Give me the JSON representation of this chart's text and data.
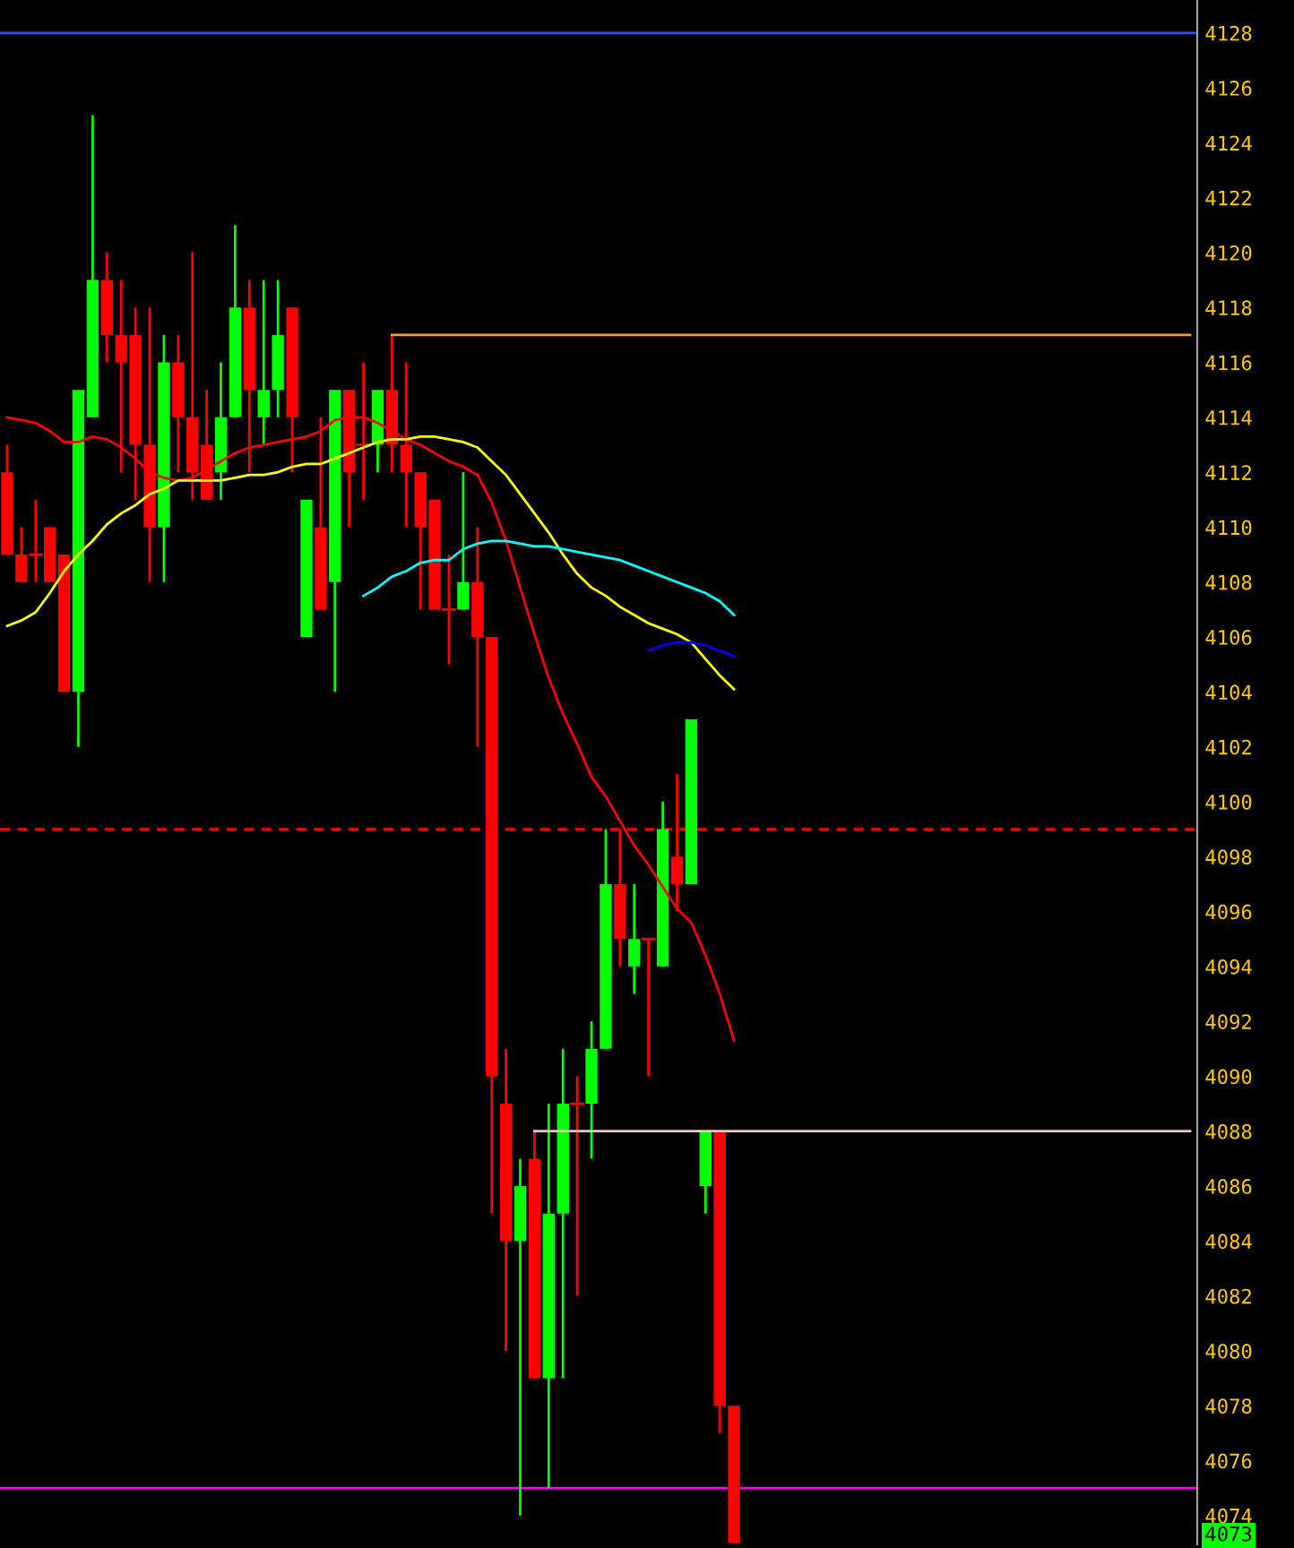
{
  "chart_data": {
    "type": "candlestick",
    "categories": [
      null,
      null,
      null,
      null,
      null,
      null,
      null,
      null,
      null,
      null,
      null,
      null,
      null,
      null,
      null,
      null,
      null,
      null,
      null,
      null,
      null,
      null,
      null,
      null,
      null,
      null,
      null,
      null,
      null,
      null,
      null,
      null,
      null,
      null,
      null,
      null,
      null,
      null,
      null,
      null,
      null,
      null,
      null,
      null,
      null,
      null,
      null,
      null,
      null,
      null,
      null,
      null,
      null,
      null,
      null,
      null,
      null,
      null,
      null,
      null,
      null,
      null,
      null,
      null,
      null,
      null,
      null,
      null,
      null,
      null,
      null,
      null,
      null,
      null,
      null,
      null,
      null,
      null,
      null,
      null,
      null,
      null,
      null,
      null
    ],
    "ylim": [
      4072.95,
      4129.2
    ],
    "yticks": [
      4074,
      4076,
      4078,
      4080,
      4082,
      4084,
      4086,
      4088,
      4090,
      4092,
      4094,
      4096,
      4098,
      4100,
      4102,
      4104,
      4106,
      4108,
      4110,
      4112,
      4114,
      4116,
      4118,
      4120,
      4122,
      4124,
      4126,
      4128
    ],
    "tick_labels": "y",
    "ohlc": [
      [
        4112,
        4113,
        4109,
        4109
      ],
      [
        4109,
        4110,
        4108,
        4108
      ],
      [
        4109,
        4111,
        4108,
        4109
      ],
      [
        4110,
        4110,
        4108,
        4108
      ],
      [
        4109,
        4109,
        4104,
        4104
      ],
      [
        4104,
        4115,
        4102,
        4115
      ],
      [
        4114,
        4125,
        4114,
        4119
      ],
      [
        4119,
        4120,
        4116,
        4117
      ],
      [
        4117,
        4119,
        4112,
        4116
      ],
      [
        4117,
        4118,
        4111,
        4113
      ],
      [
        4113,
        4118,
        4108,
        4110
      ],
      [
        4110,
        4117,
        4108,
        4116
      ],
      [
        4116,
        4117,
        4112,
        4114
      ],
      [
        4114,
        4120,
        4111,
        4112
      ],
      [
        4113,
        4115,
        4111,
        4111
      ],
      [
        4112,
        4116,
        4111,
        4114
      ],
      [
        4114,
        4121,
        4114,
        4118
      ],
      [
        4118,
        4119,
        4112,
        4115
      ],
      [
        4114,
        4119,
        4113,
        4115
      ],
      [
        4115,
        4119,
        4114,
        4117
      ],
      [
        4118,
        4118,
        4112,
        4114
      ],
      [
        4106,
        4111,
        4106,
        4111
      ],
      [
        4110,
        4114,
        4107,
        4107
      ],
      [
        4108,
        4115,
        4104,
        4115
      ],
      [
        4115,
        4115,
        4110,
        4112
      ],
      [
        4113,
        4116,
        4111,
        4113
      ],
      [
        4113,
        4115,
        4112,
        4115
      ],
      [
        4115,
        4117,
        4112,
        4113
      ],
      [
        4113,
        4116,
        4110,
        4112
      ],
      [
        4112,
        4112,
        4107,
        4110
      ],
      [
        4111,
        4111,
        4107,
        4107
      ],
      [
        4107,
        4109,
        4105,
        4107
      ],
      [
        4107,
        4112,
        4107,
        4108
      ],
      [
        4108,
        4110,
        4102,
        4106
      ],
      [
        4106,
        4106,
        4085,
        4090
      ],
      [
        4089,
        4091,
        4080,
        4084
      ],
      [
        4084,
        4087,
        4074,
        4086
      ],
      [
        4087,
        4088,
        4079,
        4079
      ],
      [
        4079,
        4089,
        4075,
        4085
      ],
      [
        4085,
        4091,
        4079,
        4089
      ],
      [
        4089,
        4090,
        4082,
        4089
      ],
      [
        4089,
        4092,
        4087,
        4091
      ],
      [
        4091,
        4099,
        4091,
        4097
      ],
      [
        4097,
        4099,
        4094,
        4095
      ],
      [
        4094,
        4097,
        4093,
        4095
      ],
      [
        4095,
        4095,
        4090,
        4095
      ],
      [
        4094,
        4100,
        4094,
        4099
      ],
      [
        4098,
        4101,
        4096,
        4097
      ],
      [
        4097,
        4103,
        4097,
        4103
      ],
      [
        4086,
        4088,
        4085,
        4088
      ],
      [
        4088,
        4088,
        4077,
        4078
      ],
      [
        4078,
        4078,
        4073,
        4073
      ],
      null,
      null,
      null,
      null,
      null,
      null,
      null,
      null,
      null,
      null,
      null,
      null,
      null,
      null,
      null,
      null,
      null,
      null,
      null,
      null,
      null,
      null,
      null,
      null,
      null,
      null,
      null,
      null,
      null,
      null,
      null,
      null
    ],
    "colors": [
      "#ff0000",
      "#ff0000",
      "#ff0000",
      "#ff0000",
      "#ff0000",
      "#00ff00",
      "#00ff00",
      "#ff0000",
      "#ff0000",
      "#ff0000",
      "#ff0000",
      "#00ff00",
      "#ff0000",
      "#ff0000",
      "#ff0000",
      "#00ff00",
      "#00ff00",
      "#ff0000",
      "#00ff00",
      "#00ff00",
      "#ff0000",
      "#00ff00",
      "#ff0000",
      "#00ff00",
      "#ff0000",
      "#ff0000",
      "#00ff00",
      "#ff0000",
      "#ff0000",
      "#ff0000",
      "#ff0000",
      "#ff0000",
      "#00ff00",
      "#ff0000",
      "#ff0000",
      "#ff0000",
      "#00ff00",
      "#ff0000",
      "#00ff00",
      "#00ff00",
      "#ff0000",
      "#00ff00",
      "#00ff00",
      "#ff0000",
      "#00ff00",
      "#ff0000",
      "#00ff00",
      "#ff0000",
      "#00ff00",
      "#00ff00",
      "#ff0000",
      "#ff0000",
      null,
      null,
      null,
      null,
      null,
      null,
      null,
      null,
      null,
      null,
      null,
      null,
      null,
      null,
      null,
      null,
      null,
      null,
      null,
      null,
      null,
      null,
      null,
      null,
      null,
      null,
      null,
      null,
      null,
      null,
      null,
      null
    ],
    "series": [
      {
        "type": "line",
        "color": "#ff0000",
        "values": [
          4114.0,
          4113.9,
          4113.8,
          4113.5,
          4113.1,
          4113.1,
          4113.3,
          4113.2,
          4112.9,
          4112.5,
          4112.0,
          4111.8,
          4111.7,
          4111.8,
          4112.1,
          4112.4,
          4112.7,
          4112.9,
          4113.0,
          4113.1,
          4113.2,
          4113.3,
          4113.5,
          4113.9,
          4114.0,
          4114.0,
          4113.8,
          4113.5,
          4113.2,
          4113.0,
          4112.7,
          4112.4,
          4112.2,
          4111.9,
          4110.9,
          4109.5,
          4107.8,
          4106.1,
          4104.5,
          4103.2,
          4102.1,
          4100.9,
          4100.2,
          4099.3,
          4098.4,
          4097.7,
          4096.9,
          4096.1,
          4095.6,
          4094.4,
          4093.0,
          4091.3,
          null,
          null,
          null,
          null,
          null,
          null,
          null,
          null,
          null,
          null,
          null,
          null,
          null,
          null,
          null,
          null,
          null,
          null,
          null,
          null,
          null,
          null,
          null,
          null,
          null,
          null,
          null,
          null,
          null,
          null,
          null,
          null
        ]
      },
      {
        "type": "line",
        "color": "#ffff00",
        "values": [
          4106.4,
          4106.6,
          4106.9,
          4107.6,
          4108.4,
          4109.0,
          4109.5,
          4110.1,
          4110.5,
          4110.8,
          4111.2,
          4111.4,
          4111.7,
          4111.7,
          4111.7,
          4111.7,
          4111.8,
          4111.9,
          4111.9,
          4112.0,
          4112.2,
          4112.3,
          4112.3,
          4112.5,
          4112.7,
          4112.9,
          4113.1,
          4113.2,
          4113.2,
          4113.3,
          4113.3,
          4113.2,
          4113.1,
          4112.9,
          4112.4,
          4111.9,
          4111.2,
          4110.5,
          4109.8,
          4109.0,
          4108.3,
          4107.8,
          4107.5,
          4107.1,
          4106.8,
          4106.5,
          4106.3,
          4106.1,
          4105.8,
          4105.2,
          4104.6,
          4104.1,
          null,
          null,
          null,
          null,
          null,
          null,
          null,
          null,
          null,
          null,
          null,
          null,
          null,
          null,
          null,
          null,
          null,
          null,
          null,
          null,
          null,
          null,
          null,
          null,
          null,
          null,
          null,
          null,
          null,
          null,
          null,
          null
        ]
      },
      {
        "type": "line",
        "color": "#00ffff",
        "values": [
          null,
          null,
          null,
          null,
          null,
          null,
          null,
          null,
          null,
          null,
          null,
          null,
          null,
          null,
          null,
          null,
          null,
          null,
          null,
          null,
          null,
          null,
          null,
          null,
          null,
          4107.5,
          4107.8,
          4108.2,
          4108.4,
          4108.7,
          4108.8,
          4108.8,
          4109.2,
          4109.4,
          4109.5,
          4109.5,
          4109.4,
          4109.3,
          4109.3,
          4109.2,
          4109.1,
          4109.0,
          4108.9,
          4108.8,
          4108.6,
          4108.4,
          4108.2,
          4108.0,
          4107.8,
          4107.6,
          4107.3,
          4106.8,
          null,
          null,
          null,
          null,
          null,
          null,
          null,
          null,
          null,
          null,
          null,
          null,
          null,
          null,
          null,
          null,
          null,
          null,
          null,
          null,
          null,
          null,
          null,
          null,
          null,
          null,
          null,
          null,
          null,
          null,
          null,
          null
        ]
      },
      {
        "type": "line",
        "color": "#0000ff",
        "values": [
          null,
          null,
          null,
          null,
          null,
          null,
          null,
          null,
          null,
          null,
          null,
          null,
          null,
          null,
          null,
          null,
          null,
          null,
          null,
          null,
          null,
          null,
          null,
          null,
          null,
          null,
          null,
          null,
          null,
          null,
          null,
          null,
          null,
          null,
          null,
          null,
          null,
          null,
          null,
          null,
          null,
          null,
          null,
          null,
          null,
          4105.5,
          4105.7,
          4105.8,
          4105.8,
          4105.7,
          4105.5,
          4105.3,
          null,
          null,
          null,
          null,
          null,
          null,
          null,
          null,
          null,
          null,
          null,
          null,
          null,
          null,
          null,
          null,
          null,
          null,
          null,
          null,
          null,
          null,
          null,
          null,
          null,
          null,
          null,
          null,
          null,
          null,
          null,
          null
        ]
      },
      {
        "type": "line",
        "color": "#f0a030",
        "values": [
          null,
          null,
          null,
          null,
          null,
          null,
          null,
          null,
          null,
          null,
          null,
          null,
          null,
          null,
          null,
          null,
          null,
          null,
          null,
          null,
          null,
          null,
          null,
          null,
          null,
          null,
          null,
          4117,
          4117,
          4117,
          4117,
          4117,
          4117,
          4117,
          4117,
          4117,
          4117,
          4117,
          4117,
          4117,
          4117,
          4117,
          4117,
          4117,
          4117,
          4117,
          4117,
          4117,
          4117,
          4117,
          4117,
          4117,
          4117,
          4117,
          4117,
          4117,
          4117,
          4117,
          4117,
          4117,
          4117,
          4117,
          4117,
          4117,
          4117,
          4117,
          4117,
          4117,
          4117,
          4117,
          4117,
          4117,
          4117,
          4117,
          4117,
          4117,
          4117,
          4117,
          4117,
          4117,
          4117,
          4117,
          4117,
          4117
        ]
      },
      {
        "type": "line",
        "color": "#f4c4c4",
        "values": [
          null,
          null,
          null,
          null,
          null,
          null,
          null,
          null,
          null,
          null,
          null,
          null,
          null,
          null,
          null,
          null,
          null,
          null,
          null,
          null,
          null,
          null,
          null,
          null,
          null,
          null,
          null,
          null,
          null,
          null,
          null,
          null,
          null,
          null,
          null,
          null,
          null,
          4088,
          4088,
          4088,
          4088,
          4088,
          4088,
          4088,
          4088,
          4088,
          4088,
          4088,
          4088,
          4088,
          4088,
          4088,
          4088,
          4088,
          4088,
          4088,
          4088,
          4088,
          4088,
          4088,
          4088,
          4088,
          4088,
          4088,
          4088,
          4088,
          4088,
          4088,
          4088,
          4088,
          4088,
          4088,
          4088,
          4088,
          4088,
          4088,
          4088,
          4088,
          4088,
          4088,
          4088,
          4088,
          4088,
          4088
        ]
      }
    ],
    "ref_lines": [
      {
        "axis": "y",
        "value": 4128,
        "color": "#3050ff",
        "line_style": "solid"
      },
      {
        "axis": "y",
        "value": 4099,
        "color": "#ff0000",
        "line_style": "dashed"
      },
      {
        "axis": "y",
        "value": 4075,
        "color": "#ff00ff",
        "line_style": "solid"
      }
    ],
    "annotations": [
      "4073"
    ],
    "grid": false,
    "legend": false
  }
}
